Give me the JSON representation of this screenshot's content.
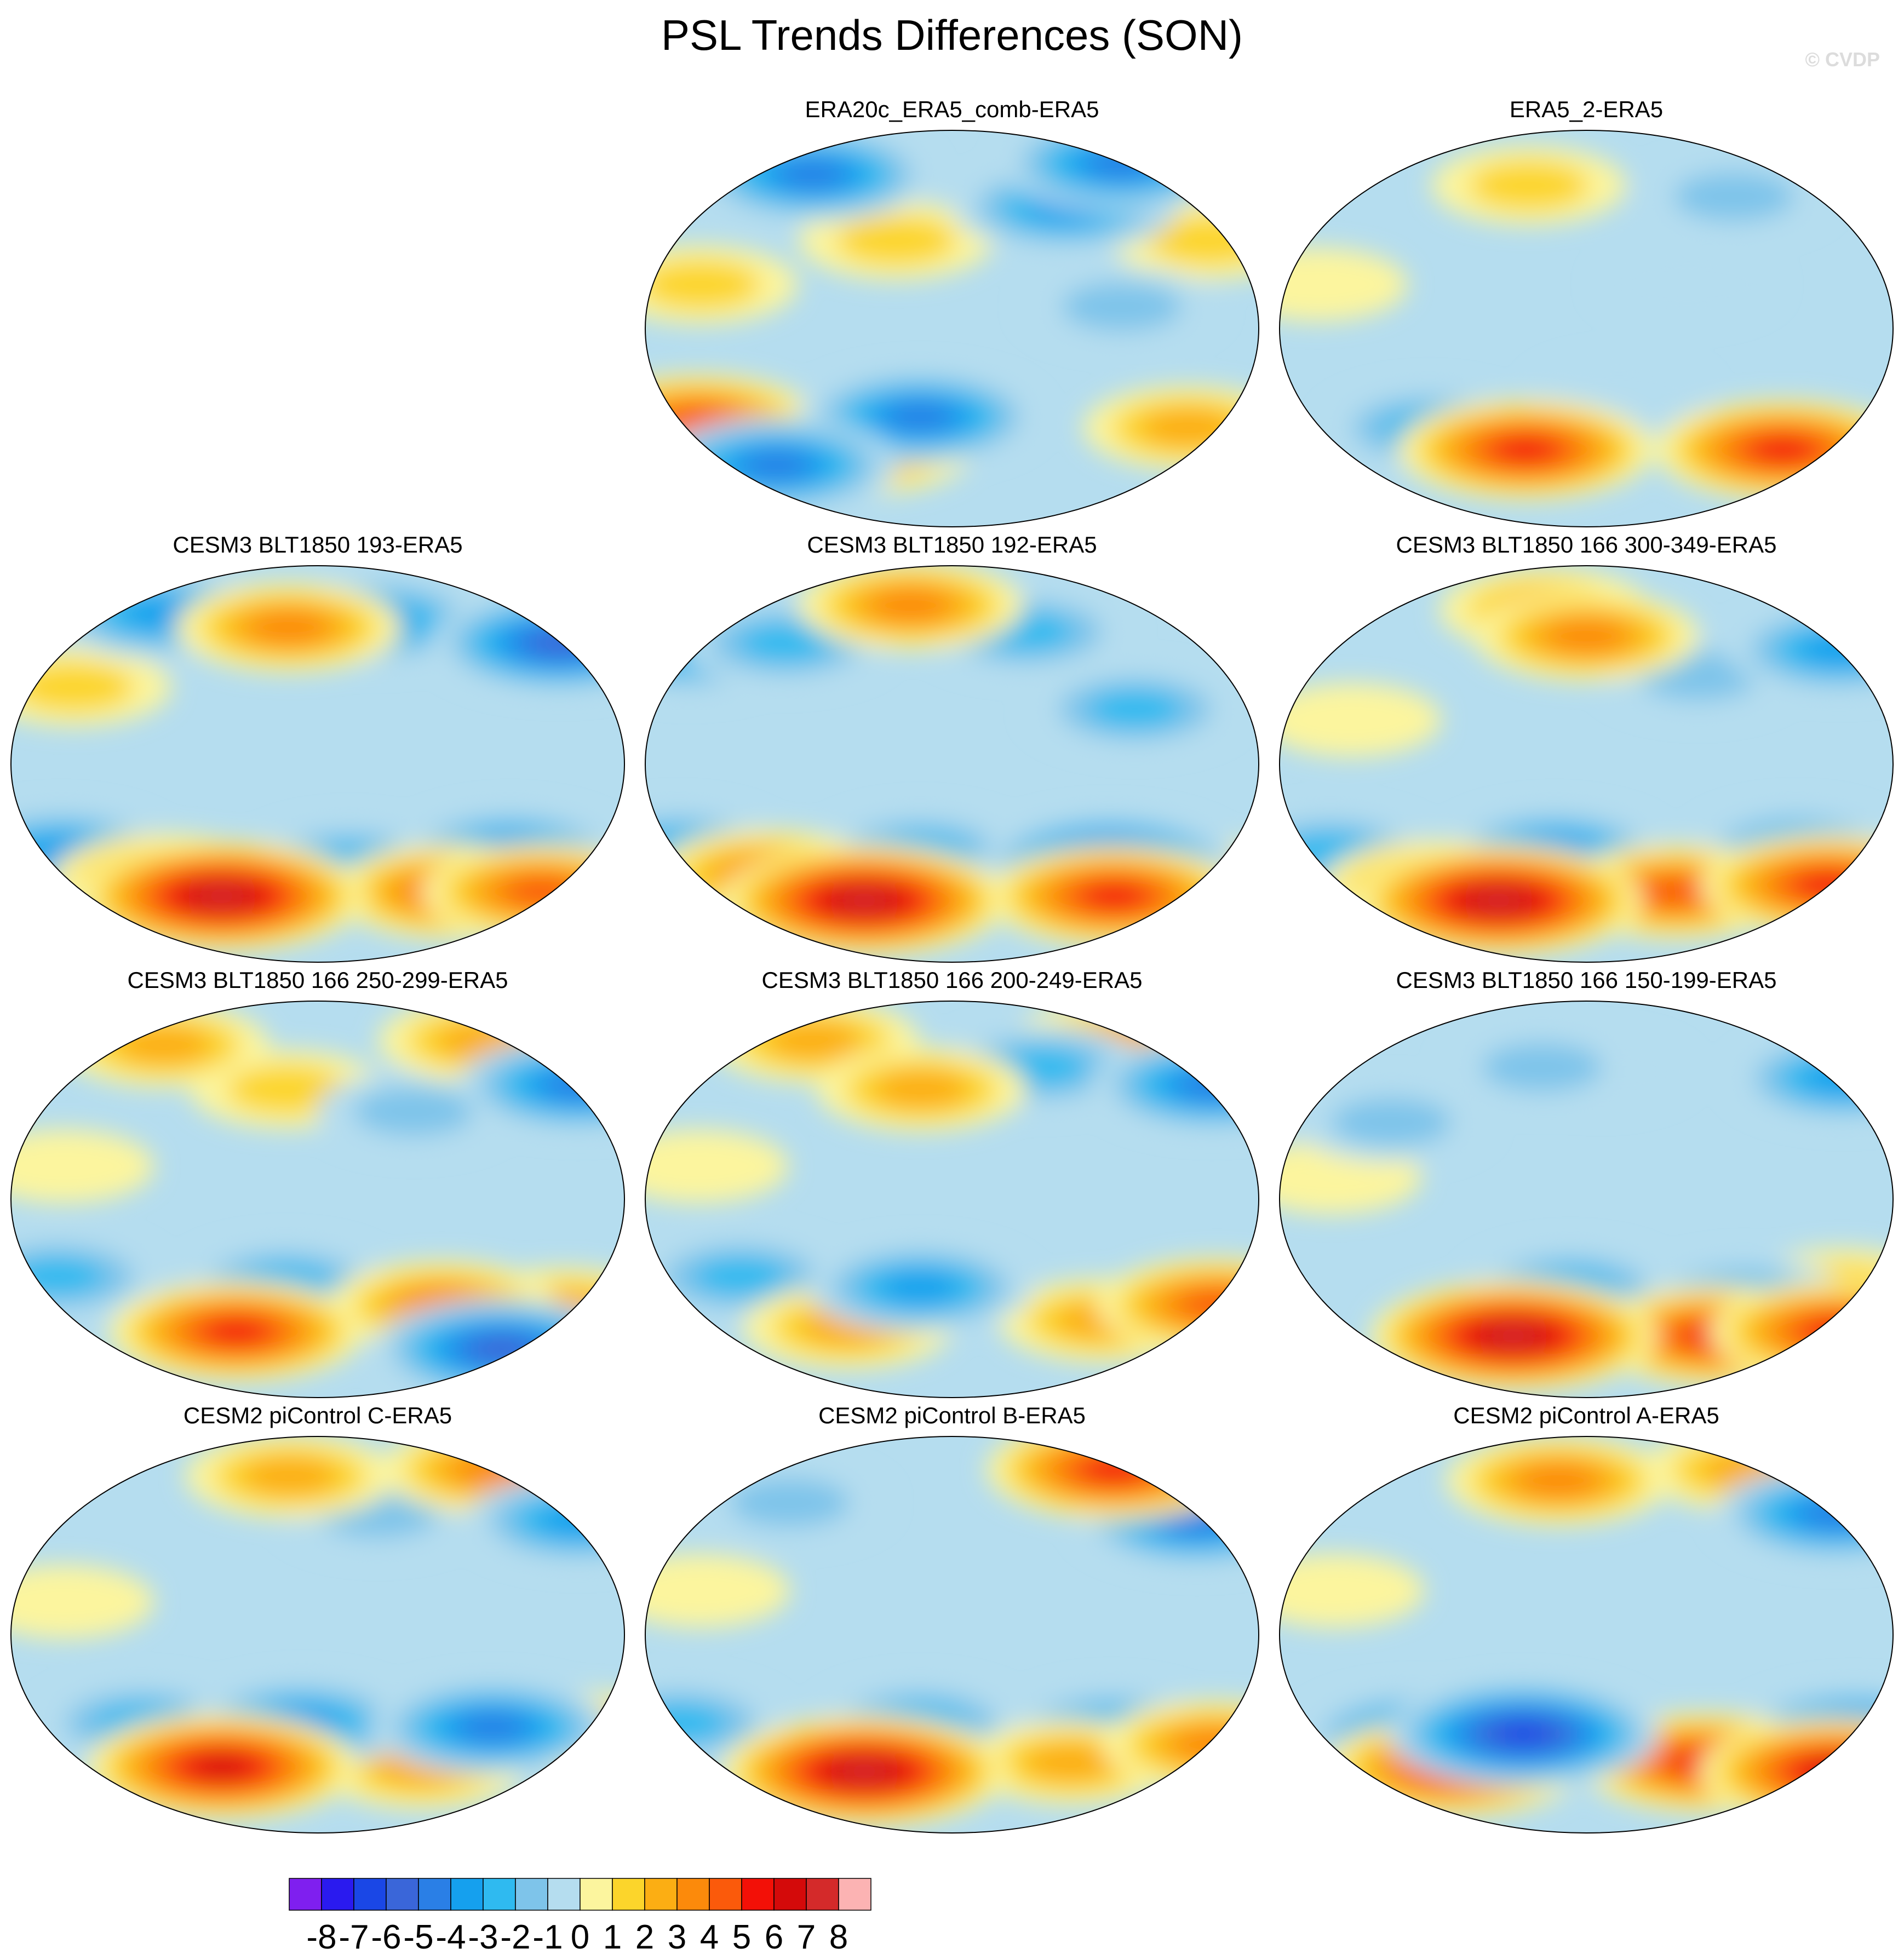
{
  "title": "PSL Trends Differences (SON)",
  "watermark": "© CVDP",
  "chart_data": {
    "type": "heatmap",
    "projection": "robinson-style global map",
    "season": "SON",
    "variable": "PSL",
    "panels": [
      {
        "title": "ERA20c_ERA5_comb-ERA5",
        "features": [
          {
            "lon": 125,
            "lat": 75,
            "value": -5
          },
          {
            "lon": 75,
            "lat": 55,
            "value": -4
          },
          {
            "lon": -100,
            "lat": 70,
            "value": -5
          },
          {
            "lon": 160,
            "lat": 40,
            "value": 2
          },
          {
            "lon": -150,
            "lat": 20,
            "value": 2
          },
          {
            "lon": -35,
            "lat": 40,
            "value": 2
          },
          {
            "lon": 150,
            "lat": -45,
            "value": 3
          },
          {
            "lon": -160,
            "lat": -42,
            "value": 5
          },
          {
            "lon": -60,
            "lat": -55,
            "value": 4
          },
          {
            "lon": -20,
            "lat": -40,
            "value": -5
          },
          {
            "lon": -120,
            "lat": -62,
            "value": -5
          },
          {
            "lon": 100,
            "lat": 10,
            "value": -2
          }
        ]
      },
      {
        "title": "ERA5_2-ERA5",
        "features": [
          {
            "lon": 100,
            "lat": 60,
            "value": -2
          },
          {
            "lon": -40,
            "lat": 65,
            "value": 2
          },
          {
            "lon": -160,
            "lat": 20,
            "value": 1
          },
          {
            "lon": 130,
            "lat": -55,
            "value": 6
          },
          {
            "lon": 160,
            "lat": -58,
            "value": 5
          },
          {
            "lon": -40,
            "lat": -55,
            "value": 6
          },
          {
            "lon": -100,
            "lat": -45,
            "value": -3
          },
          {
            "lon": 20,
            "lat": -30,
            "value": -1
          },
          {
            "lon": 60,
            "lat": 20,
            "value": -1
          }
        ]
      },
      {
        "title": "CESM3 BLT1850 193-ERA5",
        "features": [
          {
            "lon": 40,
            "lat": 65,
            "value": -4
          },
          {
            "lon": 160,
            "lat": 55,
            "value": -6
          },
          {
            "lon": -110,
            "lat": 68,
            "value": -4
          },
          {
            "lon": -20,
            "lat": 62,
            "value": 4
          },
          {
            "lon": -150,
            "lat": 35,
            "value": 2
          },
          {
            "lon": 120,
            "lat": -40,
            "value": -4
          },
          {
            "lon": -160,
            "lat": -40,
            "value": -4
          },
          {
            "lon": 20,
            "lat": -45,
            "value": -3
          },
          {
            "lon": 90,
            "lat": -58,
            "value": 5
          },
          {
            "lon": 150,
            "lat": -58,
            "value": 5
          },
          {
            "lon": -65,
            "lat": -60,
            "value": 8
          },
          {
            "lon": -100,
            "lat": -52,
            "value": 4
          }
        ]
      },
      {
        "title": "CESM3 BLT1850 192-ERA5",
        "features": [
          {
            "lon": -30,
            "lat": 72,
            "value": 4
          },
          {
            "lon": 50,
            "lat": 60,
            "value": -3
          },
          {
            "lon": -170,
            "lat": 50,
            "value": -3
          },
          {
            "lon": -110,
            "lat": 55,
            "value": -3
          },
          {
            "lon": 110,
            "lat": 25,
            "value": -3
          },
          {
            "lon": 100,
            "lat": -45,
            "value": -6
          },
          {
            "lon": -170,
            "lat": -38,
            "value": -3
          },
          {
            "lon": -20,
            "lat": -40,
            "value": -3
          },
          {
            "lon": 110,
            "lat": -60,
            "value": 6
          },
          {
            "lon": 170,
            "lat": -55,
            "value": 4
          },
          {
            "lon": -60,
            "lat": -62,
            "value": 8
          },
          {
            "lon": -120,
            "lat": -50,
            "value": 4
          }
        ]
      },
      {
        "title": "CESM3 BLT1850 166 300-349-ERA5",
        "features": [
          {
            "lon": -30,
            "lat": 70,
            "value": 3
          },
          {
            "lon": 0,
            "lat": 58,
            "value": 4
          },
          {
            "lon": 165,
            "lat": 52,
            "value": -4
          },
          {
            "lon": 70,
            "lat": 40,
            "value": -2
          },
          {
            "lon": -140,
            "lat": 20,
            "value": 1
          },
          {
            "lon": 130,
            "lat": -38,
            "value": -3
          },
          {
            "lon": -160,
            "lat": -40,
            "value": -3
          },
          {
            "lon": -20,
            "lat": -40,
            "value": -4
          },
          {
            "lon": 60,
            "lat": -58,
            "value": 5
          },
          {
            "lon": 160,
            "lat": -55,
            "value": 6
          },
          {
            "lon": -60,
            "lat": -62,
            "value": 8
          },
          {
            "lon": -100,
            "lat": -55,
            "value": 4
          }
        ]
      },
      {
        "title": "CESM3 BLT1850 166 250-299-ERA5",
        "features": [
          {
            "lon": 120,
            "lat": 72,
            "value": 3
          },
          {
            "lon": -110,
            "lat": 70,
            "value": 3
          },
          {
            "lon": 170,
            "lat": 52,
            "value": -5
          },
          {
            "lon": -20,
            "lat": 50,
            "value": 2
          },
          {
            "lon": 60,
            "lat": 40,
            "value": -2
          },
          {
            "lon": -150,
            "lat": 15,
            "value": 1
          },
          {
            "lon": -160,
            "lat": -35,
            "value": -3
          },
          {
            "lon": -20,
            "lat": -38,
            "value": -3
          },
          {
            "lon": 80,
            "lat": -48,
            "value": 4
          },
          {
            "lon": 160,
            "lat": -50,
            "value": 3
          },
          {
            "lon": -55,
            "lat": -60,
            "value": 6
          },
          {
            "lon": 130,
            "lat": -68,
            "value": -6
          }
        ]
      },
      {
        "title": "CESM3 BLT1850 166 200-249-ERA5",
        "features": [
          {
            "lon": 120,
            "lat": 72,
            "value": 3
          },
          {
            "lon": -100,
            "lat": 72,
            "value": 3
          },
          {
            "lon": 60,
            "lat": 60,
            "value": -3
          },
          {
            "lon": 170,
            "lat": 52,
            "value": -5
          },
          {
            "lon": -20,
            "lat": 50,
            "value": 3
          },
          {
            "lon": -150,
            "lat": 15,
            "value": 1
          },
          {
            "lon": -130,
            "lat": -35,
            "value": -3
          },
          {
            "lon": -20,
            "lat": -40,
            "value": -4
          },
          {
            "lon": 100,
            "lat": -55,
            "value": 3
          },
          {
            "lon": 170,
            "lat": -48,
            "value": 5
          },
          {
            "lon": -70,
            "lat": -58,
            "value": 3
          }
        ]
      },
      {
        "title": "CESM3 BLT1850 166 150-199-ERA5",
        "features": [
          {
            "lon": -30,
            "lat": 60,
            "value": -2
          },
          {
            "lon": 170,
            "lat": 55,
            "value": -4
          },
          {
            "lon": -120,
            "lat": 35,
            "value": -2
          },
          {
            "lon": 10,
            "lat": 58,
            "value": -1
          },
          {
            "lon": -150,
            "lat": 10,
            "value": 1
          },
          {
            "lon": 160,
            "lat": -40,
            "value": 2
          },
          {
            "lon": 100,
            "lat": -45,
            "value": -3
          },
          {
            "lon": -10,
            "lat": -40,
            "value": -3
          },
          {
            "lon": 90,
            "lat": -62,
            "value": 6
          },
          {
            "lon": 170,
            "lat": -60,
            "value": 6
          },
          {
            "lon": -50,
            "lat": -62,
            "value": 8
          }
        ]
      },
      {
        "title": "CESM2 piControl C-ERA5",
        "features": [
          {
            "lon": 130,
            "lat": 75,
            "value": 4
          },
          {
            "lon": -20,
            "lat": 72,
            "value": 3
          },
          {
            "lon": 170,
            "lat": 52,
            "value": -4
          },
          {
            "lon": 40,
            "lat": 55,
            "value": -2
          },
          {
            "lon": -150,
            "lat": 15,
            "value": 1
          },
          {
            "lon": 110,
            "lat": -42,
            "value": -5
          },
          {
            "lon": -110,
            "lat": -40,
            "value": -3
          },
          {
            "lon": -10,
            "lat": -40,
            "value": -4
          },
          {
            "lon": 170,
            "lat": -45,
            "value": 3
          },
          {
            "lon": 70,
            "lat": -60,
            "value": 3
          },
          {
            "lon": -65,
            "lat": -60,
            "value": 7
          }
        ]
      },
      {
        "title": "CESM2 piControl B-ERA5",
        "features": [
          {
            "lon": 120,
            "lat": 75,
            "value": 6
          },
          {
            "lon": 160,
            "lat": 52,
            "value": -5
          },
          {
            "lon": -110,
            "lat": 60,
            "value": -2
          },
          {
            "lon": -150,
            "lat": 20,
            "value": 1
          },
          {
            "lon": 100,
            "lat": -42,
            "value": -3
          },
          {
            "lon": -170,
            "lat": -40,
            "value": -3
          },
          {
            "lon": -20,
            "lat": -40,
            "value": -3
          },
          {
            "lon": 170,
            "lat": -50,
            "value": 4
          },
          {
            "lon": 80,
            "lat": -58,
            "value": 3
          },
          {
            "lon": -60,
            "lat": -62,
            "value": 8
          }
        ]
      },
      {
        "title": "CESM2 piControl A-ERA5",
        "features": [
          {
            "lon": 120,
            "lat": 75,
            "value": 3
          },
          {
            "lon": -20,
            "lat": 70,
            "value": 4
          },
          {
            "lon": 165,
            "lat": 55,
            "value": -5
          },
          {
            "lon": -150,
            "lat": 20,
            "value": 1
          },
          {
            "lon": 170,
            "lat": -45,
            "value": -5
          },
          {
            "lon": -40,
            "lat": -45,
            "value": -7
          },
          {
            "lon": 80,
            "lat": -58,
            "value": 6
          },
          {
            "lon": 170,
            "lat": -62,
            "value": 7
          },
          {
            "lon": -90,
            "lat": -60,
            "value": 6
          },
          {
            "lon": -110,
            "lat": -45,
            "value": -4
          }
        ]
      }
    ],
    "colorbar": {
      "levels": [
        -8,
        -7,
        -6,
        -5,
        -4,
        -3,
        -2,
        -1,
        0,
        1,
        2,
        3,
        4,
        5,
        6,
        7,
        8
      ],
      "labels": [
        "-8",
        "-7",
        "-6",
        "-5",
        "-4",
        "-3",
        "-2",
        "-1",
        "0",
        "1",
        "2",
        "3",
        "4",
        "5",
        "6",
        "7",
        "8"
      ],
      "colors": [
        "#7f1fef",
        "#2a1aef",
        "#1a47e6",
        "#3a66d9",
        "#2a7fe6",
        "#15a0ee",
        "#2fbaf0",
        "#7ec4ea",
        "#b5ddef",
        "#fcf59e",
        "#fcd52b",
        "#fcae13",
        "#fc8a0b",
        "#fb5a0b",
        "#f31007",
        "#d40a0a",
        "#d42a2a",
        "#fcb3b3"
      ]
    }
  }
}
